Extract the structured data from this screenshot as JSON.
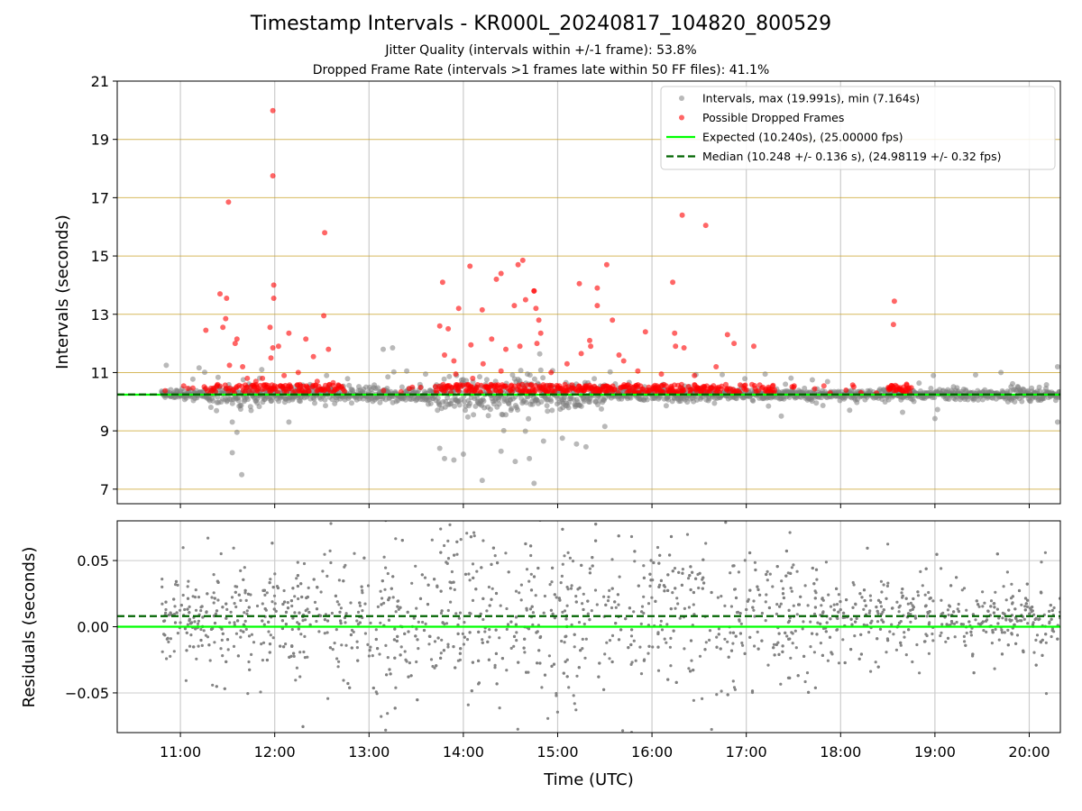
{
  "figure": {
    "title": "Timestamp Intervals - KR000L_20240817_104820_800529",
    "subtitle_1": "Jitter Quality (intervals within +/-1 frame): 53.8%",
    "subtitle_2": "Dropped Frame Rate (intervals >1 frames late within 50 FF files): 41.1%"
  },
  "colors": {
    "intervals": "#808080",
    "dropped": "#ff0000",
    "expected": "#00ff00",
    "median": "#006400",
    "hgrid": "#c9a227",
    "grid": "#cccccc"
  },
  "chart_data": [
    {
      "type": "scatter",
      "ylabel": "Intervals (seconds)",
      "xlabel": "",
      "xlim": [
        10.33,
        20.33
      ],
      "ylim": [
        6.5,
        21
      ],
      "yticks": [
        7,
        9,
        11,
        13,
        15,
        17,
        19,
        21
      ],
      "grid": true,
      "legend_position": "upper right",
      "legend": [
        {
          "label": "Intervals, max (19.991s), min (7.164s)",
          "kind": "dot",
          "color": "#808080"
        },
        {
          "label": "Possible Dropped Frames",
          "kind": "dot",
          "color": "#ff0000"
        },
        {
          "label": "Expected (10.240s), (25.00000 fps)",
          "kind": "solid",
          "color": "#00ff00"
        },
        {
          "label": "Median (10.248 +/- 0.136 s), (24.98119 +/- 0.32 fps)",
          "kind": "dashed",
          "color": "#006400"
        }
      ],
      "expected_interval": 10.24,
      "median_interval": 10.248,
      "interval_max": 19.991,
      "interval_min": 7.164,
      "data_start": 10.8,
      "data_end": 20.33,
      "series": [
        {
          "name": "Possible Dropped Frames",
          "points": [
            [
              11.51,
              16.85
            ],
            [
              11.98,
              19.99
            ],
            [
              11.98,
              17.75
            ],
            [
              11.99,
              14.0
            ],
            [
              11.99,
              13.55
            ],
            [
              12.53,
              15.8
            ],
            [
              11.42,
              13.7
            ],
            [
              11.49,
              13.55
            ],
            [
              11.48,
              12.85
            ],
            [
              11.45,
              12.55
            ],
            [
              11.27,
              12.45
            ],
            [
              11.6,
              12.15
            ],
            [
              11.58,
              12.0
            ],
            [
              11.95,
              12.55
            ],
            [
              12.15,
              12.35
            ],
            [
              12.33,
              12.15
            ],
            [
              12.52,
              12.95
            ],
            [
              11.98,
              11.85
            ],
            [
              12.04,
              11.9
            ],
            [
              12.57,
              11.8
            ],
            [
              12.41,
              11.55
            ],
            [
              11.96,
              11.5
            ],
            [
              11.66,
              11.2
            ],
            [
              11.87,
              10.8
            ],
            [
              12.25,
              11.0
            ],
            [
              11.52,
              11.25
            ],
            [
              13.78,
              14.1
            ],
            [
              13.95,
              13.2
            ],
            [
              13.75,
              12.6
            ],
            [
              13.84,
              12.5
            ],
            [
              14.07,
              14.65
            ],
            [
              14.35,
              14.2
            ],
            [
              14.4,
              14.4
            ],
            [
              14.58,
              14.7
            ],
            [
              14.63,
              14.85
            ],
            [
              14.2,
              13.15
            ],
            [
              14.54,
              13.3
            ],
            [
              14.66,
              13.5
            ],
            [
              14.75,
              13.8
            ],
            [
              14.75,
              13.8
            ],
            [
              14.77,
              13.2
            ],
            [
              14.8,
              12.8
            ],
            [
              14.82,
              12.35
            ],
            [
              14.78,
              12.0
            ],
            [
              14.08,
              11.95
            ],
            [
              14.3,
              12.15
            ],
            [
              14.45,
              11.8
            ],
            [
              14.6,
              11.9
            ],
            [
              15.23,
              14.05
            ],
            [
              15.42,
              13.9
            ],
            [
              15.52,
              14.7
            ],
            [
              15.42,
              13.3
            ],
            [
              15.58,
              12.8
            ],
            [
              15.34,
              12.1
            ],
            [
              15.35,
              11.9
            ],
            [
              15.25,
              11.65
            ],
            [
              15.65,
              11.6
            ],
            [
              15.7,
              11.4
            ],
            [
              15.93,
              12.4
            ],
            [
              16.22,
              14.1
            ],
            [
              16.32,
              16.4
            ],
            [
              16.57,
              16.05
            ],
            [
              16.24,
              12.35
            ],
            [
              16.25,
              11.9
            ],
            [
              16.34,
              11.85
            ],
            [
              16.8,
              12.3
            ],
            [
              16.87,
              12.0
            ],
            [
              17.08,
              11.9
            ],
            [
              18.57,
              13.45
            ],
            [
              18.56,
              12.65
            ],
            [
              13.9,
              11.4
            ],
            [
              14.21,
              11.3
            ],
            [
              14.4,
              11.05
            ],
            [
              14.93,
              11.0
            ],
            [
              15.1,
              11.3
            ],
            [
              15.85,
              11.05
            ],
            [
              16.1,
              10.95
            ],
            [
              16.45,
              10.9
            ],
            [
              16.68,
              11.2
            ],
            [
              13.8,
              11.6
            ],
            [
              13.92,
              10.95
            ],
            [
              14.1,
              10.8
            ],
            [
              11.71,
              10.8
            ],
            [
              11.8,
              10.7
            ],
            [
              12.1,
              10.9
            ],
            [
              12.45,
              10.7
            ],
            [
              12.62,
              10.65
            ],
            [
              18.7,
              10.6
            ]
          ]
        }
      ],
      "scatter_density": [
        [
          10.8,
          11.25,
          0.05
        ],
        [
          11.25,
          11.75,
          0.35
        ],
        [
          11.75,
          12.75,
          0.55
        ],
        [
          12.75,
          13.7,
          0.03
        ],
        [
          13.7,
          14.9,
          0.6
        ],
        [
          14.9,
          16.0,
          0.55
        ],
        [
          16.0,
          16.7,
          0.6
        ],
        [
          16.7,
          17.3,
          0.45
        ],
        [
          17.3,
          18.5,
          0.05
        ],
        [
          18.5,
          18.75,
          0.6
        ],
        [
          18.75,
          20.33,
          0.0
        ]
      ],
      "spread_regions": [
        [
          10.8,
          11.3,
          0.12
        ],
        [
          11.3,
          11.75,
          0.3
        ],
        [
          11.75,
          12.75,
          0.2
        ],
        [
          12.75,
          13.7,
          0.18
        ],
        [
          13.7,
          14.95,
          0.45
        ],
        [
          14.95,
          15.5,
          0.3
        ],
        [
          15.5,
          16.7,
          0.18
        ],
        [
          16.7,
          19.7,
          0.12
        ],
        [
          19.7,
          20.0,
          0.18
        ],
        [
          20.0,
          20.33,
          0.14
        ]
      ]
    },
    {
      "type": "scatter",
      "ylabel": "Residuals (seconds)",
      "xlabel": "Time (UTC)",
      "xlim": [
        10.33,
        20.33
      ],
      "ylim": [
        -0.08,
        0.08
      ],
      "yticks": [
        -0.05,
        0.0,
        0.05
      ],
      "ytick_labels": [
        "−0.05",
        "0.00",
        "0.05"
      ],
      "xticks": [
        11,
        12,
        13,
        14,
        15,
        16,
        17,
        18,
        19,
        20
      ],
      "xtick_labels": [
        "11:00",
        "12:00",
        "13:00",
        "14:00",
        "15:00",
        "16:00",
        "17:00",
        "18:00",
        "19:00",
        "20:00"
      ],
      "grid": true,
      "expected_residual": 0.0,
      "median_residual": 0.008,
      "residual_spread": [
        [
          10.8,
          11.3,
          0.022
        ],
        [
          11.3,
          12.0,
          0.03
        ],
        [
          12.0,
          13.7,
          0.04
        ],
        [
          13.7,
          15.0,
          0.045
        ],
        [
          15.0,
          16.9,
          0.042
        ],
        [
          16.9,
          17.8,
          0.035
        ],
        [
          17.8,
          18.5,
          0.025
        ],
        [
          18.5,
          20.33,
          0.02
        ]
      ]
    }
  ]
}
